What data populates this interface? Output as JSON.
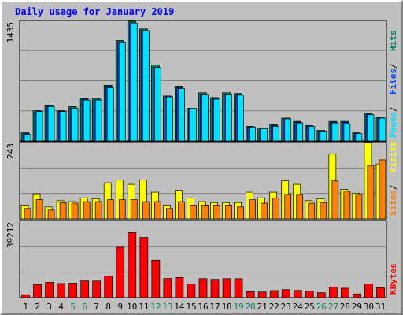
{
  "title": "Daily usage for January 2019",
  "colors": {
    "background": "#c0c0c0",
    "plot": "#c0c0c0",
    "title": "#0000ff",
    "grid": "#808080",
    "hits": "#00805c",
    "files": "#0040ff",
    "pages": "#00e0ff",
    "visits": "#ffff00",
    "sites": "#ff8000",
    "kbytes": "#ff0000",
    "weekday_label": "#000000",
    "weekend_label": "#00805c"
  },
  "chart_data": [
    {
      "type": "bar",
      "name": "hits-files-pages",
      "ymax_label": "1435",
      "ylim": [
        0,
        1435
      ],
      "categories": [
        "1",
        "2",
        "3",
        "4",
        "5",
        "6",
        "7",
        "8",
        "9",
        "10",
        "11",
        "12",
        "13",
        "14",
        "15",
        "16",
        "17",
        "18",
        "19",
        "20",
        "21",
        "22",
        "23",
        "24",
        "25",
        "26",
        "27",
        "28",
        "29",
        "30",
        "31"
      ],
      "series": [
        {
          "name": "Hits",
          "values": [
            98,
            363,
            431,
            363,
            412,
            510,
            510,
            667,
            1205,
            1435,
            1343,
            912,
            539,
            657,
            392,
            578,
            520,
            578,
            569,
            176,
            157,
            196,
            274,
            235,
            186,
            127,
            235,
            235,
            98,
            333,
            284
          ]
        },
        {
          "name": "Files",
          "values": [
            88,
            343,
            412,
            353,
            392,
            500,
            490,
            657,
            1186,
            1415,
            1323,
            882,
            529,
            637,
            382,
            559,
            510,
            559,
            559,
            167,
            147,
            186,
            265,
            225,
            176,
            118,
            225,
            225,
            88,
            323,
            274
          ]
        },
        {
          "name": "Pages",
          "values": [
            78,
            353,
            412,
            353,
            392,
            490,
            490,
            637,
            1186,
            1415,
            1323,
            882,
            529,
            627,
            392,
            559,
            500,
            559,
            549,
            167,
            147,
            176,
            265,
            216,
            176,
            118,
            216,
            206,
            88,
            314,
            274
          ]
        }
      ],
      "legend": [
        "Pages",
        "Files",
        "Hits"
      ]
    },
    {
      "type": "bar",
      "name": "visits-sites",
      "ymax_label": "243",
      "ylim": [
        0,
        243
      ],
      "categories": [
        "1",
        "2",
        "3",
        "4",
        "5",
        "6",
        "7",
        "8",
        "9",
        "10",
        "11",
        "12",
        "13",
        "14",
        "15",
        "16",
        "17",
        "18",
        "19",
        "20",
        "21",
        "22",
        "23",
        "24",
        "25",
        "26",
        "27",
        "28",
        "29",
        "30",
        "31"
      ],
      "series": [
        {
          "name": "Visits",
          "values": [
            44,
            80,
            38,
            58,
            55,
            67,
            64,
            115,
            124,
            110,
            124,
            85,
            44,
            91,
            67,
            55,
            52,
            52,
            52,
            85,
            67,
            85,
            121,
            110,
            58,
            64,
            206,
            94,
            82,
            243,
            175
          ]
        },
        {
          "name": "Sites",
          "values": [
            33,
            61,
            28,
            52,
            50,
            55,
            55,
            61,
            61,
            61,
            55,
            55,
            33,
            55,
            44,
            44,
            44,
            44,
            38,
            61,
            50,
            67,
            78,
            78,
            50,
            52,
            121,
            88,
            78,
            170,
            188
          ]
        }
      ],
      "legend": [
        "Sites",
        "Visits"
      ]
    },
    {
      "type": "bar",
      "name": "kbytes",
      "ymax_label": "39212",
      "ylim": [
        0,
        39212
      ],
      "categories": [
        "1",
        "2",
        "3",
        "4",
        "5",
        "6",
        "7",
        "8",
        "9",
        "10",
        "11",
        "12",
        "13",
        "14",
        "15",
        "16",
        "17",
        "18",
        "19",
        "20",
        "21",
        "22",
        "23",
        "24",
        "25",
        "26",
        "27",
        "28",
        "29",
        "30",
        "31"
      ],
      "series": [
        {
          "name": "KBytes",
          "values": [
            1540,
            6745,
            7895,
            7300,
            7500,
            8630,
            8580,
            11010,
            25870,
            33450,
            30900,
            19290,
            9850,
            10360,
            7100,
            9800,
            9410,
            9800,
            9770,
            3110,
            2950,
            3650,
            4150,
            3730,
            3460,
            2560,
            5420,
            4860,
            1920,
            7040,
            5100
          ]
        }
      ],
      "legend": [
        "KBytes"
      ]
    }
  ],
  "weekend_days": [
    "5",
    "6",
    "12",
    "13",
    "19",
    "20",
    "26",
    "27"
  ]
}
